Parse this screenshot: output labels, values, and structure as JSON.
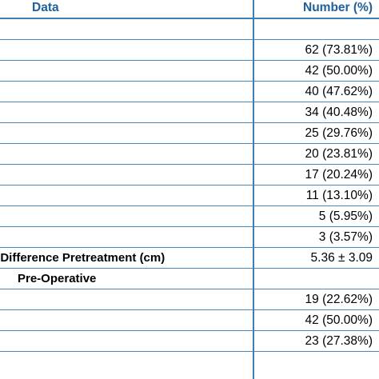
{
  "header": {
    "data": "Data",
    "number": "Number (%)"
  },
  "rows": [
    {
      "label": "",
      "value": ""
    },
    {
      "label": "",
      "value": "62 (73.81%)"
    },
    {
      "label": "",
      "value": "42 (50.00%)"
    },
    {
      "label": "",
      "value": "40 (47.62%)"
    },
    {
      "label": "",
      "value": "34 (40.48%)"
    },
    {
      "label": "",
      "value": "25 (29.76%)"
    },
    {
      "label": "",
      "value": "20 (23.81%)"
    },
    {
      "label": "",
      "value": "17 (20.24%)"
    },
    {
      "label": "",
      "value": "11 (13.10%)"
    },
    {
      "label": "",
      "value": "5 (5.95%)"
    },
    {
      "label": "",
      "value": "3 (3.57%)"
    },
    {
      "label": "l Difference Pretreatment (cm)",
      "value": "5.36 ± 3.09"
    },
    {
      "label": "Pre-Operative",
      "value": ""
    },
    {
      "label": "",
      "value": "19 (22.62%)"
    },
    {
      "label": "",
      "value": "42 (50.00%)"
    },
    {
      "label": "",
      "value": "23 (27.38%)"
    }
  ]
}
